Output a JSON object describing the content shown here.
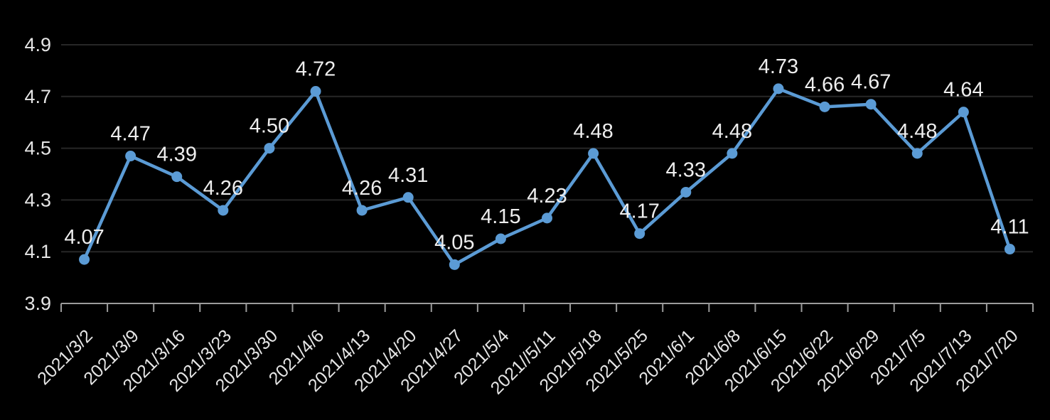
{
  "chart_data": {
    "type": "line",
    "title": "",
    "xlabel": "",
    "ylabel": "",
    "categories": [
      "2021/3/2",
      "2021/3/9",
      "2021/3/16",
      "2021/3/23",
      "2021/3/30",
      "2021/4/6",
      "2021/4/13",
      "2021/4/20",
      "2021/4/27",
      "2021/5/4",
      "2021//5/11",
      "2021/5/18",
      "2021/5/25",
      "2021/6/1",
      "2021/6/8",
      "2021/6/15",
      "2021/6/22",
      "2021/6/29",
      "2021/7/5",
      "2021/7/13",
      "2021/7/20"
    ],
    "values": [
      4.07,
      4.47,
      4.39,
      4.26,
      4.5,
      4.72,
      4.26,
      4.31,
      4.05,
      4.15,
      4.23,
      4.48,
      4.17,
      4.33,
      4.48,
      4.73,
      4.66,
      4.67,
      4.48,
      4.64,
      4.11
    ],
    "data_labels": [
      "4.07",
      "4.47",
      "4.39",
      "4.26",
      "4.50",
      "4.72",
      "4.26",
      "4.31",
      "4.05",
      "4.15",
      "4.23",
      "4.48",
      "4.17",
      "4.33",
      "4.48",
      "4.73",
      "4.66",
      "4.67",
      "4.48",
      "4.64",
      "4.11"
    ],
    "y_ticks": [
      "3.9",
      "4.1",
      "4.3",
      "4.5",
      "4.7",
      "4.9"
    ],
    "ylim": [
      3.9,
      4.9
    ],
    "grid": true,
    "legend_position": "none",
    "x_label_rotation_deg": 45,
    "colors": {
      "background": "#000000",
      "series_line": "#5b9bd5",
      "marker": "#5b9bd5",
      "gridline": "#272727",
      "axis_line": "#9c9c9c",
      "tick_label": "#e6e6e6",
      "data_label": "#eeeeee"
    }
  }
}
